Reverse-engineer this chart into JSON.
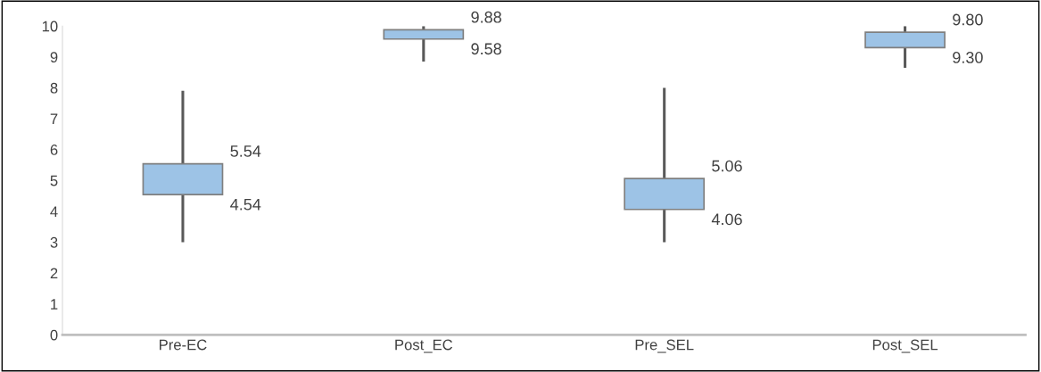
{
  "chart_data": {
    "type": "bar",
    "categories": [
      "Pre-EC",
      "Post_EC",
      "Pre_SEL",
      "Post_SEL"
    ],
    "base": [
      4.54,
      9.58,
      4.06,
      9.3
    ],
    "values": [
      1.0,
      0.3,
      1.0,
      0.5
    ],
    "errors": [
      [
        3.0,
        7.9
      ],
      [
        8.85,
        10.0
      ],
      [
        3.0,
        8.0
      ],
      [
        8.65,
        10.0
      ]
    ],
    "color": "#9dc3e6",
    "ylim": [
      0,
      10
    ],
    "yticks": [
      0,
      1,
      2,
      3,
      4,
      5,
      6,
      7,
      8,
      9,
      10
    ],
    "grid": false,
    "legend": false,
    "annotations": [
      {
        "text": "5.54",
        "x": "Pre-EC",
        "y": 5.54
      },
      {
        "text": "4.54",
        "x": "Pre-EC",
        "y": 4.54
      },
      {
        "text": "9.88",
        "x": "Post_EC",
        "y": 9.88
      },
      {
        "text": "9.58",
        "x": "Post_EC",
        "y": 9.58
      },
      {
        "text": "5.06",
        "x": "Pre_SEL",
        "y": 5.06
      },
      {
        "text": "4.06",
        "x": "Pre_SEL",
        "y": 4.06
      },
      {
        "text": "9.80",
        "x": "Post_SEL",
        "y": 9.8
      },
      {
        "text": "9.30",
        "x": "Post_SEL",
        "y": 9.3
      }
    ]
  }
}
